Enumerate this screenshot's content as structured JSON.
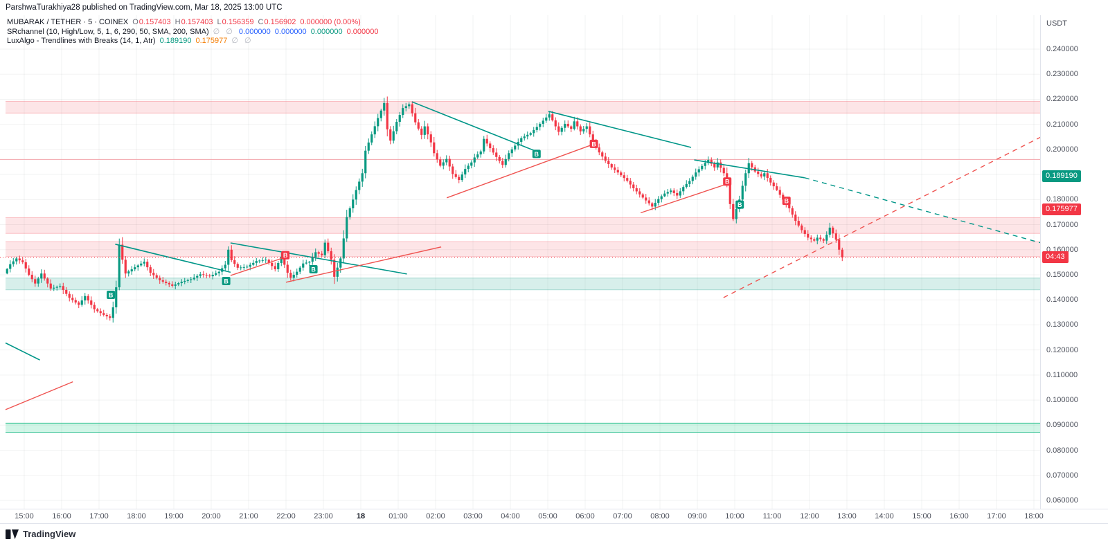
{
  "top_bar": {
    "publish_text": "ParshwaTurakhiya28 published on TradingView.com, Mar 18, 2025 13:00 UTC"
  },
  "legend": {
    "symbol_row": {
      "title": "MUBARAK / TETHER · 5 · COINEX",
      "ohlc": [
        [
          "O",
          "0.157403"
        ],
        [
          "H",
          "0.157403"
        ],
        [
          "L",
          "0.156359"
        ],
        [
          "C",
          "0.156902"
        ]
      ],
      "change": "0.000000 (0.00%)"
    },
    "sr_row": {
      "name": "SRchannel (10, High/Low, 5, 1, 6, 290, 50, SMA, 200, SMA)",
      "empties": "∅ ∅",
      "values": [
        [
          "0.000000",
          "#2962ff"
        ],
        [
          "0.000000",
          "#2962ff"
        ],
        [
          "0.000000",
          "#089981"
        ],
        [
          "0.000000",
          "#f23645"
        ]
      ]
    },
    "lux_row": {
      "name": "LuxAlgo - Trendlines with Breaks (14, 1, Atr)",
      "values": [
        [
          "0.189190",
          "#089981"
        ],
        [
          "0.175977",
          "#f57c00"
        ]
      ],
      "empties": "∅ ∅"
    }
  },
  "price_axis": {
    "currency": "USDT",
    "tick_min": 0.06,
    "tick_max": 0.24,
    "tick_step": 0.01,
    "decimals": 6,
    "badges": [
      {
        "text": "0.189190",
        "price": 0.18919,
        "bg": "#089981",
        "name": "upper-trendline-price-badge"
      },
      {
        "text": "0.175977",
        "price": 0.175977,
        "bg": "#f23645",
        "name": "lower-trendline-price-badge"
      },
      {
        "text": "04:43",
        "price": 0.156902,
        "bg": "#f23645",
        "name": "bar-countdown-badge"
      }
    ]
  },
  "time_axis": {
    "labels": [
      [
        "15:00",
        0
      ],
      [
        "16:00",
        60
      ],
      [
        "17:00",
        120
      ],
      [
        "18:00",
        180
      ],
      [
        "19:00",
        240
      ],
      [
        "20:00",
        300
      ],
      [
        "21:00",
        360
      ],
      [
        "22:00",
        420
      ],
      [
        "23:00",
        480
      ],
      [
        "18",
        540,
        true
      ],
      [
        "01:00",
        600
      ],
      [
        "02:00",
        660
      ],
      [
        "03:00",
        720
      ],
      [
        "04:00",
        780
      ],
      [
        "05:00",
        840
      ],
      [
        "06:00",
        900
      ],
      [
        "07:00",
        960
      ],
      [
        "08:00",
        1020
      ],
      [
        "09:00",
        1080
      ],
      [
        "10:00",
        1140
      ],
      [
        "11:00",
        1200
      ],
      [
        "12:00",
        1260
      ],
      [
        "13:00",
        1320
      ],
      [
        "14:00",
        1380
      ],
      [
        "15:00",
        1440
      ],
      [
        "16:00",
        1500
      ],
      [
        "17:00",
        1560
      ],
      [
        "18:00",
        1620
      ]
    ]
  },
  "footer": {
    "brand": "TradingView"
  },
  "chart_data": {
    "type": "candlestick",
    "symbol": "MUBARAK / TETHER",
    "exchange": "COINEX",
    "interval": "5",
    "title": "MUBARAK / TETHER · 5 · COINEX",
    "ohlc_current": {
      "open": 0.157403,
      "high": 0.157403,
      "low": 0.156359,
      "close": 0.156902,
      "change": "0.000000 (0.00%)"
    },
    "y_axis": {
      "min": 0.06,
      "max": 0.24,
      "step": 0.01,
      "grid": true
    },
    "x_axis": {
      "start_label": "15:00",
      "end_label": "18:00",
      "new_day_label": "18"
    },
    "candles": {
      "start_min": -30,
      "end_min": 1315,
      "interval_min": 5
    },
    "keyframes": [
      [
        -30,
        0.1505
      ],
      [
        -20,
        0.1542
      ],
      [
        -10,
        0.1565
      ],
      [
        0,
        0.155
      ],
      [
        10,
        0.15
      ],
      [
        20,
        0.1465
      ],
      [
        30,
        0.1505
      ],
      [
        45,
        0.1445
      ],
      [
        60,
        0.1455
      ],
      [
        75,
        0.1408
      ],
      [
        90,
        0.138
      ],
      [
        100,
        0.1415
      ],
      [
        115,
        0.1362
      ],
      [
        130,
        0.134
      ],
      [
        140,
        0.1328
      ],
      [
        145,
        0.137
      ],
      [
        150,
        0.145
      ],
      [
        155,
        0.162
      ],
      [
        160,
        0.156
      ],
      [
        165,
        0.1505
      ],
      [
        180,
        0.153
      ],
      [
        195,
        0.1552
      ],
      [
        205,
        0.1508
      ],
      [
        220,
        0.1478
      ],
      [
        240,
        0.1456
      ],
      [
        255,
        0.1472
      ],
      [
        270,
        0.1482
      ],
      [
        285,
        0.1502
      ],
      [
        300,
        0.1494
      ],
      [
        315,
        0.1512
      ],
      [
        325,
        0.154
      ],
      [
        330,
        0.16
      ],
      [
        335,
        0.1558
      ],
      [
        345,
        0.1528
      ],
      [
        360,
        0.1532
      ],
      [
        375,
        0.1555
      ],
      [
        390,
        0.156
      ],
      [
        405,
        0.1522
      ],
      [
        415,
        0.1572
      ],
      [
        425,
        0.1508
      ],
      [
        430,
        0.1488
      ],
      [
        440,
        0.1512
      ],
      [
        450,
        0.1545
      ],
      [
        460,
        0.1552
      ],
      [
        470,
        0.159
      ],
      [
        480,
        0.1578
      ],
      [
        485,
        0.1628
      ],
      [
        495,
        0.156
      ],
      [
        500,
        0.1492
      ],
      [
        510,
        0.1565
      ],
      [
        515,
        0.1645
      ],
      [
        520,
        0.173
      ],
      [
        530,
        0.18
      ],
      [
        535,
        0.1838
      ],
      [
        545,
        0.1905
      ],
      [
        550,
        0.1995
      ],
      [
        560,
        0.206
      ],
      [
        570,
        0.2125
      ],
      [
        580,
        0.2185
      ],
      [
        585,
        0.208
      ],
      [
        590,
        0.2035
      ],
      [
        600,
        0.211
      ],
      [
        610,
        0.2165
      ],
      [
        620,
        0.218
      ],
      [
        630,
        0.2108
      ],
      [
        640,
        0.2058
      ],
      [
        645,
        0.2092
      ],
      [
        655,
        0.2028
      ],
      [
        660,
        0.1985
      ],
      [
        670,
        0.1935
      ],
      [
        680,
        0.1962
      ],
      [
        690,
        0.1902
      ],
      [
        700,
        0.1878
      ],
      [
        710,
        0.1922
      ],
      [
        720,
        0.1948
      ],
      [
        725,
        0.1968
      ],
      [
        735,
        0.1992
      ],
      [
        740,
        0.2042
      ],
      [
        750,
        0.2005
      ],
      [
        760,
        0.197
      ],
      [
        770,
        0.1938
      ],
      [
        780,
        0.1985
      ],
      [
        790,
        0.2015
      ],
      [
        800,
        0.2045
      ],
      [
        815,
        0.2065
      ],
      [
        830,
        0.2102
      ],
      [
        845,
        0.214
      ],
      [
        855,
        0.2092
      ],
      [
        860,
        0.207
      ],
      [
        870,
        0.2102
      ],
      [
        880,
        0.2082
      ],
      [
        885,
        0.2112
      ],
      [
        895,
        0.2072
      ],
      [
        905,
        0.2092
      ],
      [
        915,
        0.2028
      ],
      [
        925,
        0.1988
      ],
      [
        935,
        0.1955
      ],
      [
        945,
        0.1928
      ],
      [
        955,
        0.1908
      ],
      [
        970,
        0.1875
      ],
      [
        980,
        0.1845
      ],
      [
        995,
        0.1808
      ],
      [
        1005,
        0.1785
      ],
      [
        1010,
        0.1772
      ],
      [
        1020,
        0.1802
      ],
      [
        1030,
        0.1824
      ],
      [
        1040,
        0.1836
      ],
      [
        1050,
        0.1816
      ],
      [
        1060,
        0.185
      ],
      [
        1070,
        0.1874
      ],
      [
        1080,
        0.1908
      ],
      [
        1090,
        0.1934
      ],
      [
        1100,
        0.1958
      ],
      [
        1110,
        0.1928
      ],
      [
        1115,
        0.1948
      ],
      [
        1125,
        0.1905
      ],
      [
        1130,
        0.1868
      ],
      [
        1135,
        0.1782
      ],
      [
        1140,
        0.1722
      ],
      [
        1145,
        0.1762
      ],
      [
        1150,
        0.18
      ],
      [
        1155,
        0.1855
      ],
      [
        1160,
        0.1905
      ],
      [
        1165,
        0.1945
      ],
      [
        1175,
        0.1912
      ],
      [
        1185,
        0.1892
      ],
      [
        1190,
        0.1905
      ],
      [
        1200,
        0.1868
      ],
      [
        1210,
        0.1838
      ],
      [
        1220,
        0.18
      ],
      [
        1230,
        0.1765
      ],
      [
        1240,
        0.1715
      ],
      [
        1250,
        0.1678
      ],
      [
        1260,
        0.1648
      ],
      [
        1270,
        0.1636
      ],
      [
        1275,
        0.1648
      ],
      [
        1285,
        0.1636
      ],
      [
        1290,
        0.166
      ],
      [
        1295,
        0.1688
      ],
      [
        1300,
        0.1665
      ],
      [
        1305,
        0.164
      ],
      [
        1310,
        0.16
      ],
      [
        1315,
        0.156902
      ]
    ],
    "zones": [
      {
        "name": "supply-zone-1",
        "top": 0.2192,
        "bottom": 0.2145,
        "fill": "rgba(242,54,69,0.13)",
        "edge": "rgba(242,54,69,0.30)"
      },
      {
        "name": "supply-zone-2",
        "top": 0.1728,
        "bottom": 0.1665,
        "fill": "rgba(242,54,69,0.13)",
        "edge": "rgba(242,54,69,0.28)"
      },
      {
        "name": "supply-zone-3",
        "top": 0.1632,
        "bottom": 0.1572,
        "fill": "rgba(242,54,69,0.13)",
        "edge": "rgba(242,54,69,0.28)"
      },
      {
        "name": "demand-zone-1",
        "top": 0.1487,
        "bottom": 0.144,
        "fill": "rgba(8,153,129,0.16)",
        "edge": "rgba(8,153,129,0.30)"
      },
      {
        "name": "demand-zone-2",
        "top": 0.0908,
        "bottom": 0.0872,
        "fill": "rgba(0,200,120,0.18)",
        "edge": "#2bbf8e"
      }
    ],
    "hlines": [
      {
        "name": "resistance-line",
        "price": 0.196,
        "color": "#f3a4ab",
        "w": 1
      }
    ],
    "price_line": {
      "price": 0.156902,
      "color": "#f23645"
    },
    "trendlines": [
      {
        "t1": 146,
        "p1": 0.1622,
        "t2": 331,
        "p2": 0.151,
        "color": "#009688",
        "w": 1.6
      },
      {
        "t1": 331,
        "p1": 0.1627,
        "t2": 614,
        "p2": 0.1503,
        "color": "#009688",
        "w": 1.6
      },
      {
        "t1": 622,
        "p1": 0.219,
        "t2": 826,
        "p2": 0.1988,
        "color": "#009688",
        "w": 1.6
      },
      {
        "t1": 841,
        "p1": 0.2152,
        "t2": 1070,
        "p2": 0.2008,
        "color": "#009688",
        "w": 1.6
      },
      {
        "t1": 1075,
        "p1": 0.1958,
        "t2": 1252,
        "p2": 0.1887,
        "color": "#009688",
        "w": 1.6
      },
      {
        "t1": -30,
        "p1": 0.1228,
        "t2": 25,
        "p2": 0.116,
        "color": "#009688",
        "w": 1.6
      },
      {
        "t1": 1252,
        "p1": 0.1887,
        "t2": 1630,
        "p2": 0.1628,
        "color": "#009688",
        "w": 1.4,
        "dash": "7 6"
      },
      {
        "t1": -30,
        "p1": 0.0962,
        "t2": 78,
        "p2": 0.1073,
        "color": "#ef5350",
        "w": 1.4
      },
      {
        "t1": 331,
        "p1": 0.1497,
        "t2": 420,
        "p2": 0.1571,
        "color": "#ef5350",
        "w": 1.4
      },
      {
        "t1": 420,
        "p1": 0.147,
        "t2": 669,
        "p2": 0.1611,
        "color": "#ef5350",
        "w": 1.4
      },
      {
        "t1": 678,
        "p1": 0.1807,
        "t2": 917,
        "p2": 0.2024,
        "color": "#ef5350",
        "w": 1.4
      },
      {
        "t1": 989,
        "p1": 0.1747,
        "t2": 1130,
        "p2": 0.1864,
        "color": "#ef5350",
        "w": 1.4
      },
      {
        "t1": 1122,
        "p1": 0.1409,
        "t2": 1630,
        "p2": 0.2048,
        "color": "#ef5350",
        "w": 1.4,
        "dash": "7 6"
      }
    ],
    "break_markers": [
      {
        "t": 139,
        "price": 0.142,
        "dir": "up",
        "label": "B"
      },
      {
        "t": 324,
        "price": 0.1475,
        "dir": "up",
        "label": "B"
      },
      {
        "t": 419,
        "price": 0.1578,
        "dir": "down",
        "label": "B"
      },
      {
        "t": 464,
        "price": 0.1522,
        "dir": "up",
        "label": "B"
      },
      {
        "t": 822,
        "price": 0.1982,
        "dir": "up",
        "label": "B"
      },
      {
        "t": 914,
        "price": 0.2022,
        "dir": "down",
        "label": "B"
      },
      {
        "t": 1128,
        "price": 0.1872,
        "dir": "down",
        "label": "B"
      },
      {
        "t": 1148,
        "price": 0.178,
        "dir": "up",
        "label": "B"
      },
      {
        "t": 1223,
        "price": 0.1795,
        "dir": "down",
        "label": "B"
      }
    ],
    "colors": {
      "up": "#089981",
      "down": "#f23645",
      "teal": "#009688",
      "red": "#ef5350",
      "grid": "rgba(42,46,57,0.06)",
      "price_line": "#f23645"
    }
  }
}
